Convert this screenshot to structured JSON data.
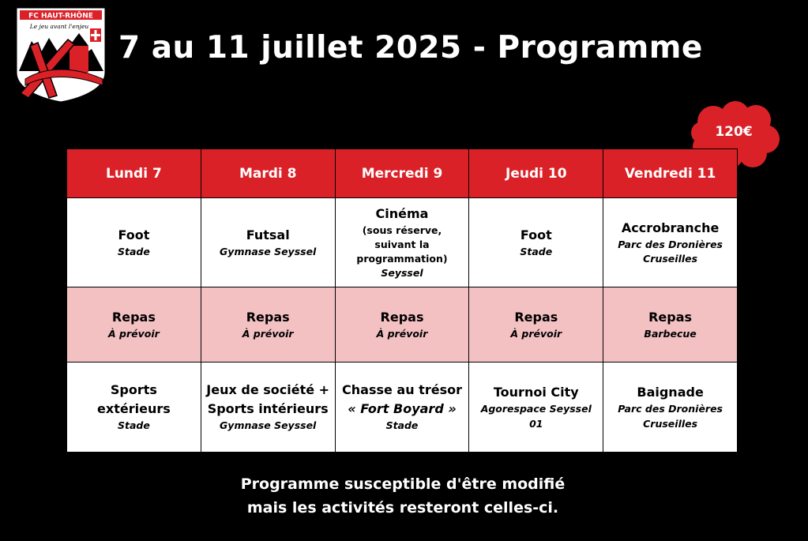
{
  "logo": {
    "name": "FC HAUT-RHÔNE",
    "tagline": "Le jeu avant l'enjeu",
    "colors": {
      "red": "#db2128",
      "white": "#ffffff",
      "black": "#000000"
    }
  },
  "header": {
    "title": "7 au 11 juillet 2025 - Programme"
  },
  "price_badge": {
    "text": "120€",
    "color": "#db2128"
  },
  "colors": {
    "header_red": "#db2128",
    "meal_pink": "#f4c1c3",
    "background": "#000000"
  },
  "days": [
    "Lundi 7",
    "Mardi 8",
    "Mercredi 9",
    "Jeudi 10",
    "Vendredi 11"
  ],
  "morning": [
    {
      "activity": "Foot",
      "location": "Stade"
    },
    {
      "activity": "Futsal",
      "location": "Gymnase Seyssel"
    },
    {
      "activity": "Cinéma",
      "note": "(sous réserve, suivant la programmation)",
      "location": "Seyssel"
    },
    {
      "activity": "Foot",
      "location": "Stade"
    },
    {
      "activity": "Accrobranche",
      "location": "Parc des Dronières Cruseilles"
    }
  ],
  "meal": [
    {
      "activity": "Repas",
      "location": "À prévoir"
    },
    {
      "activity": "Repas",
      "location": "À prévoir"
    },
    {
      "activity": "Repas",
      "location": "À prévoir"
    },
    {
      "activity": "Repas",
      "location": "À prévoir"
    },
    {
      "activity": "Repas",
      "location": "Barbecue"
    }
  ],
  "afternoon": [
    {
      "activity": "Sports extérieurs",
      "location": "Stade"
    },
    {
      "activity": "Jeux de société + Sports intérieurs",
      "location": "Gymnase Seyssel"
    },
    {
      "activity": "Chasse au trésor",
      "subtitle": "« Fort Boyard »",
      "location": "Stade"
    },
    {
      "activity": "Tournoi City",
      "location": "Agorespace Seyssel 01"
    },
    {
      "activity": "Baignade",
      "location": "Parc des Dronières Cruseilles"
    }
  ],
  "footer": {
    "line1": "Programme susceptible d'être modifié",
    "line2": "mais les activités resteront celles-ci."
  }
}
